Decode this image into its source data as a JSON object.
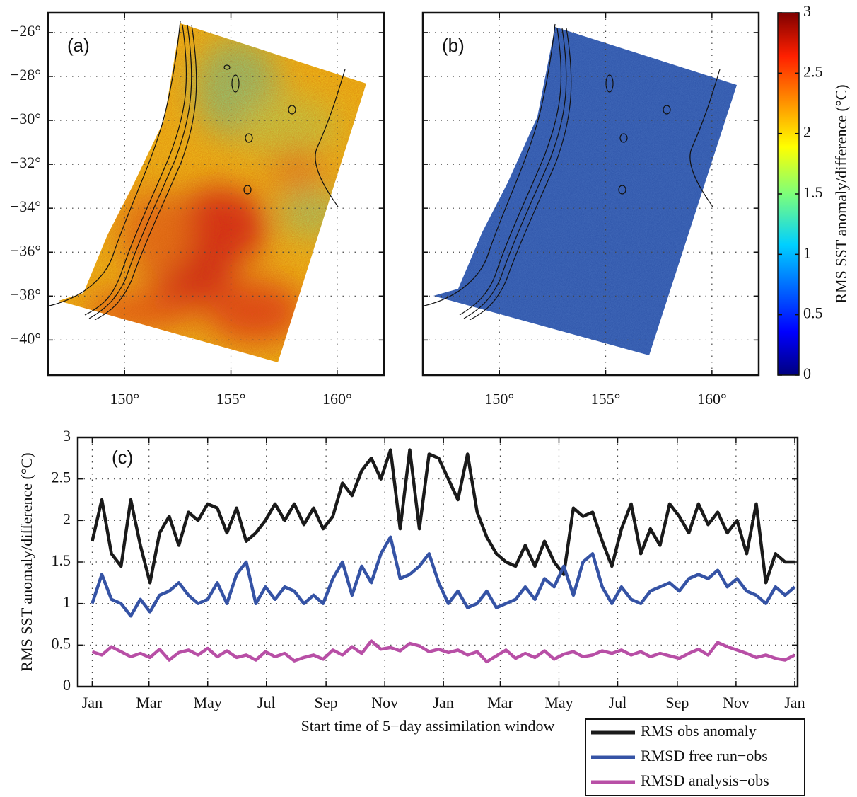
{
  "chart_data": [
    {
      "type": "map",
      "label": "(a)",
      "xlim": [
        146.4,
        162.2
      ],
      "ylim": [
        -41.6,
        -25.1
      ],
      "xticks": [
        {
          "value": 150,
          "label": "150°"
        },
        {
          "value": 155,
          "label": "155°"
        },
        {
          "value": 160,
          "label": "160°"
        }
      ],
      "yticks": [
        {
          "value": -26,
          "label": "−26°"
        },
        {
          "value": -28,
          "label": "−28°"
        },
        {
          "value": -30,
          "label": "−30°"
        },
        {
          "value": -32,
          "label": "−32°"
        },
        {
          "value": -34,
          "label": "−34°"
        },
        {
          "value": -36,
          "label": "−36°"
        },
        {
          "value": -38,
          "label": "−38°"
        },
        {
          "value": -40,
          "label": "−40°"
        }
      ],
      "grid": true
    },
    {
      "type": "map",
      "label": "(b)",
      "xlim": [
        146.4,
        162.2
      ],
      "ylim": [
        -41.6,
        -25.1
      ],
      "xticks": [
        {
          "value": 150,
          "label": "150°"
        },
        {
          "value": 155,
          "label": "155°"
        },
        {
          "value": 160,
          "label": "160°"
        }
      ],
      "grid": true,
      "colorbar": {
        "label": "RMS SST anomaly/difference (°C)",
        "clim": [
          0,
          3
        ],
        "cticks": [
          0,
          0.5,
          1,
          1.5,
          2,
          2.5,
          3
        ]
      }
    },
    {
      "type": "line",
      "label": "(c)",
      "xlabel": "Start time of 5−day assimilation window",
      "ylabel": "RMS SST anomaly/difference (°C)",
      "xlim": [
        -15,
        733
      ],
      "ylim": [
        0,
        3
      ],
      "yticks": [
        0,
        0.5,
        1,
        1.5,
        2,
        2.5,
        3
      ],
      "xticks": [
        {
          "value": 0,
          "label": "Jan"
        },
        {
          "value": 59,
          "label": "Mar"
        },
        {
          "value": 120,
          "label": "May"
        },
        {
          "value": 181,
          "label": "Jul"
        },
        {
          "value": 243,
          "label": "Sep"
        },
        {
          "value": 304,
          "label": "Nov"
        },
        {
          "value": 365,
          "label": "Jan"
        },
        {
          "value": 424,
          "label": "Mar"
        },
        {
          "value": 485,
          "label": "May"
        },
        {
          "value": 546,
          "label": "Jul"
        },
        {
          "value": 608,
          "label": "Sep"
        },
        {
          "value": 669,
          "label": "Nov"
        },
        {
          "value": 730,
          "label": "Jan"
        }
      ],
      "grid": true,
      "legend": "outside-bottom-right",
      "x": [
        0,
        10,
        20,
        30,
        40,
        50,
        60,
        70,
        80,
        90,
        100,
        110,
        120,
        130,
        140,
        150,
        160,
        170,
        180,
        190,
        200,
        210,
        220,
        230,
        240,
        250,
        260,
        270,
        280,
        290,
        300,
        310,
        320,
        330,
        340,
        350,
        360,
        370,
        380,
        390,
        400,
        410,
        420,
        430,
        440,
        450,
        460,
        470,
        480,
        490,
        500,
        510,
        520,
        530,
        540,
        550,
        560,
        570,
        580,
        590,
        600,
        610,
        620,
        630,
        640,
        650,
        660,
        670,
        680,
        690,
        700,
        710,
        720,
        730
      ],
      "series": [
        {
          "name": "RMS obs anomaly",
          "color": "#1a1a1a",
          "values": [
            1.75,
            2.25,
            1.6,
            1.45,
            2.25,
            1.7,
            1.25,
            1.85,
            2.05,
            1.7,
            2.1,
            2.0,
            2.2,
            2.15,
            1.85,
            2.15,
            1.75,
            1.85,
            2.0,
            2.2,
            2.0,
            2.2,
            1.95,
            2.15,
            1.9,
            2.05,
            2.45,
            2.3,
            2.6,
            2.75,
            2.5,
            2.85,
            1.9,
            2.85,
            1.9,
            2.8,
            2.75,
            2.5,
            2.25,
            2.8,
            2.1,
            1.8,
            1.6,
            1.5,
            1.45,
            1.7,
            1.45,
            1.75,
            1.5,
            1.35,
            2.15,
            2.05,
            2.1,
            1.75,
            1.45,
            1.9,
            2.2,
            1.6,
            1.9,
            1.7,
            2.2,
            2.05,
            1.85,
            2.2,
            1.95,
            2.1,
            1.85,
            2.0,
            1.6,
            2.2,
            1.25,
            1.6,
            1.5,
            1.5
          ]
        },
        {
          "name": "RMSD free run−obs",
          "color": "#3553a5",
          "values": [
            1.0,
            1.35,
            1.05,
            1.0,
            0.85,
            1.05,
            0.9,
            1.1,
            1.15,
            1.25,
            1.1,
            1.0,
            1.05,
            1.25,
            1.0,
            1.35,
            1.5,
            1.0,
            1.2,
            1.05,
            1.2,
            1.15,
            1.0,
            1.1,
            1.0,
            1.3,
            1.5,
            1.1,
            1.45,
            1.25,
            1.6,
            1.8,
            1.3,
            1.35,
            1.45,
            1.6,
            1.25,
            1.0,
            1.15,
            0.95,
            1.0,
            1.15,
            0.95,
            1.0,
            1.05,
            1.2,
            1.05,
            1.3,
            1.2,
            1.45,
            1.1,
            1.5,
            1.6,
            1.2,
            1.0,
            1.2,
            1.05,
            1.0,
            1.15,
            1.2,
            1.25,
            1.15,
            1.3,
            1.35,
            1.3,
            1.4,
            1.2,
            1.3,
            1.15,
            1.1,
            1.0,
            1.2,
            1.1,
            1.2
          ]
        },
        {
          "name": "RMSD analysis−obs",
          "color": "#b84fa6",
          "values": [
            0.42,
            0.38,
            0.48,
            0.42,
            0.36,
            0.4,
            0.35,
            0.45,
            0.32,
            0.41,
            0.44,
            0.38,
            0.46,
            0.36,
            0.43,
            0.35,
            0.38,
            0.32,
            0.42,
            0.36,
            0.4,
            0.31,
            0.35,
            0.38,
            0.33,
            0.44,
            0.38,
            0.48,
            0.4,
            0.55,
            0.45,
            0.47,
            0.43,
            0.52,
            0.49,
            0.42,
            0.45,
            0.41,
            0.44,
            0.38,
            0.42,
            0.3,
            0.37,
            0.44,
            0.34,
            0.4,
            0.35,
            0.43,
            0.33,
            0.39,
            0.42,
            0.36,
            0.38,
            0.43,
            0.4,
            0.44,
            0.38,
            0.42,
            0.36,
            0.4,
            0.37,
            0.34,
            0.4,
            0.45,
            0.38,
            0.53,
            0.48,
            0.44,
            0.4,
            0.35,
            0.38,
            0.34,
            0.32,
            0.38
          ]
        }
      ]
    }
  ]
}
